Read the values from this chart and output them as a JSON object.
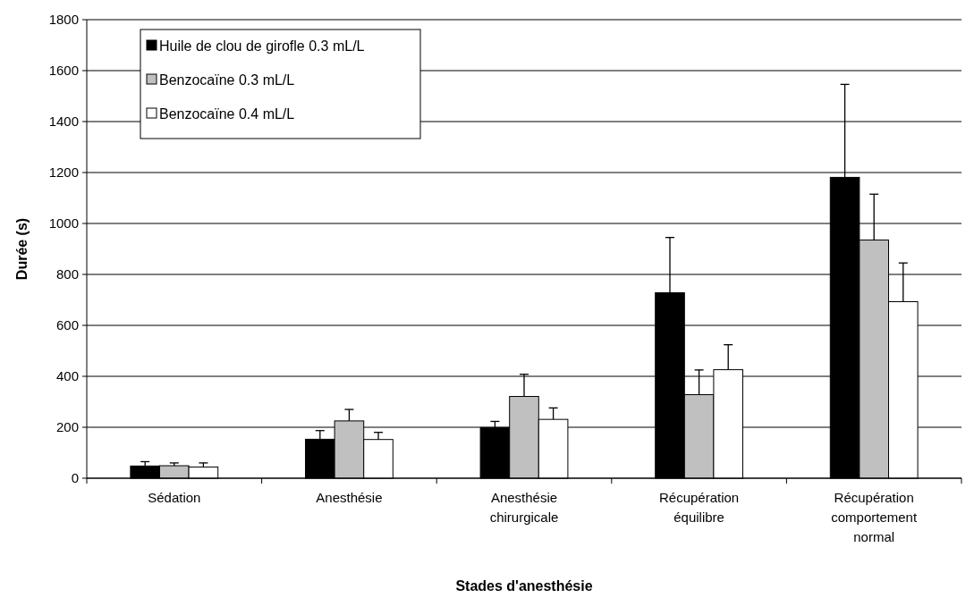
{
  "chart_data": {
    "type": "bar",
    "xlabel": "Stades d'anesthésie",
    "ylabel": "Durée (s)",
    "categories": [
      "Sédation",
      "Anesthésie",
      "Anesthésie chirurgicale",
      "Récupération équilibre",
      "Récupération comportement normal"
    ],
    "series": [
      {
        "name": "Huile de clou de girofle 0.3 mL/L",
        "color": "#000000",
        "values": [
          48,
          153,
          199,
          728,
          1181
        ],
        "errors": [
          [
            48,
            65
          ],
          [
            153,
            187
          ],
          [
            199,
            223
          ],
          [
            728,
            945
          ],
          [
            1181,
            1546
          ]
        ]
      },
      {
        "name": "Benzocaïne 0.3 mL/L",
        "color": "#c0c0c0",
        "values": [
          49,
          225,
          321,
          328,
          935
        ],
        "errors": [
          [
            49,
            60
          ],
          [
            225,
            270
          ],
          [
            321,
            408
          ],
          [
            328,
            425
          ],
          [
            935,
            1115
          ]
        ]
      },
      {
        "name": "Benzocaïne 0.4 mL/L",
        "color": "#ffffff",
        "values": [
          44,
          152,
          231,
          426,
          693
        ],
        "errors": [
          [
            44,
            60
          ],
          [
            152,
            180
          ],
          [
            231,
            276
          ],
          [
            426,
            524
          ],
          [
            693,
            845
          ]
        ]
      }
    ],
    "ylim": [
      0,
      1800
    ],
    "yticks": [
      0,
      200,
      400,
      600,
      800,
      1000,
      1200,
      1400,
      1600,
      1800
    ],
    "grid": "y",
    "legend": "top left"
  }
}
